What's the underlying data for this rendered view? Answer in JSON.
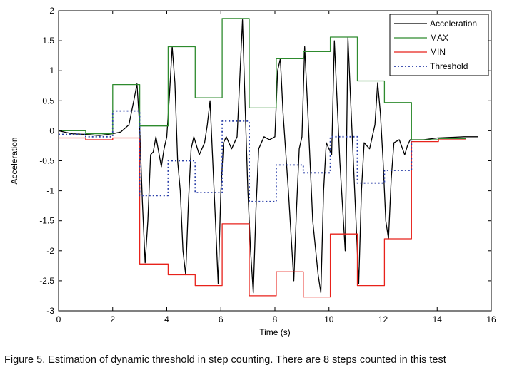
{
  "caption": "Figure 5. Estimation of dynamic threshold in step counting. There are 8 steps counted in this test",
  "chart_data": {
    "type": "line",
    "title": "",
    "xlabel": "Time (s)",
    "ylabel": "Acceleration",
    "xlim": [
      0,
      16
    ],
    "ylim": [
      -3,
      2
    ],
    "xticks": [
      0,
      2,
      4,
      6,
      8,
      10,
      12,
      14,
      16
    ],
    "yticks": [
      -3,
      -2.5,
      -2,
      -1.5,
      -1,
      -0.5,
      0,
      0.5,
      1,
      1.5,
      2
    ],
    "grid": false,
    "legend_position": "top-right",
    "series": [
      {
        "name": "Acceleration",
        "color": "#000000",
        "style": "solid",
        "points": [
          [
            0,
            0
          ],
          [
            0.5,
            -0.05
          ],
          [
            1,
            -0.06
          ],
          [
            1.5,
            -0.08
          ],
          [
            2,
            -0.05
          ],
          [
            2.3,
            -0.02
          ],
          [
            2.6,
            0.1
          ],
          [
            2.8,
            0.55
          ],
          [
            2.9,
            0.78
          ],
          [
            3.0,
            0.05
          ],
          [
            3.1,
            -1.2
          ],
          [
            3.2,
            -2.2
          ],
          [
            3.3,
            -1.5
          ],
          [
            3.4,
            -0.4
          ],
          [
            3.5,
            -0.35
          ],
          [
            3.6,
            -0.1
          ],
          [
            3.8,
            -0.6
          ],
          [
            3.9,
            -0.3
          ],
          [
            4.0,
            -0.1
          ],
          [
            4.1,
            0.6
          ],
          [
            4.2,
            1.4
          ],
          [
            4.3,
            0.8
          ],
          [
            4.4,
            -0.5
          ],
          [
            4.5,
            -1.0
          ],
          [
            4.6,
            -2.0
          ],
          [
            4.7,
            -2.4
          ],
          [
            4.8,
            -1.2
          ],
          [
            4.9,
            -0.3
          ],
          [
            5.0,
            -0.1
          ],
          [
            5.2,
            -0.4
          ],
          [
            5.4,
            -0.2
          ],
          [
            5.5,
            0.1
          ],
          [
            5.6,
            0.5
          ],
          [
            5.7,
            -0.5
          ],
          [
            5.8,
            -1.5
          ],
          [
            5.9,
            -2.55
          ],
          [
            6.0,
            -1.0
          ],
          [
            6.1,
            -0.2
          ],
          [
            6.2,
            -0.1
          ],
          [
            6.4,
            -0.3
          ],
          [
            6.6,
            -0.1
          ],
          [
            6.8,
            1.85
          ],
          [
            6.9,
            0.4
          ],
          [
            7.0,
            -1.0
          ],
          [
            7.1,
            -2.0
          ],
          [
            7.2,
            -2.7
          ],
          [
            7.3,
            -1.3
          ],
          [
            7.4,
            -0.3
          ],
          [
            7.6,
            -0.1
          ],
          [
            7.8,
            -0.15
          ],
          [
            8.0,
            -0.1
          ],
          [
            8.1,
            1.0
          ],
          [
            8.2,
            1.2
          ],
          [
            8.3,
            0.3
          ],
          [
            8.5,
            -1.0
          ],
          [
            8.7,
            -2.5
          ],
          [
            8.8,
            -1.3
          ],
          [
            8.9,
            -0.3
          ],
          [
            9.0,
            -0.1
          ],
          [
            9.1,
            1.4
          ],
          [
            9.2,
            0.5
          ],
          [
            9.4,
            -1.5
          ],
          [
            9.6,
            -2.4
          ],
          [
            9.7,
            -2.7
          ],
          [
            9.8,
            -1.0
          ],
          [
            9.9,
            -0.2
          ],
          [
            10.1,
            -0.4
          ],
          [
            10.2,
            1.5
          ],
          [
            10.4,
            -0.5
          ],
          [
            10.6,
            -2.0
          ],
          [
            10.7,
            1.55
          ],
          [
            10.8,
            0.5
          ],
          [
            11.0,
            -1.5
          ],
          [
            11.1,
            -2.55
          ],
          [
            11.2,
            -1.0
          ],
          [
            11.3,
            -0.2
          ],
          [
            11.5,
            -0.3
          ],
          [
            11.7,
            0.1
          ],
          [
            11.8,
            0.8
          ],
          [
            11.9,
            0.3
          ],
          [
            12.0,
            -0.5
          ],
          [
            12.1,
            -1.5
          ],
          [
            12.2,
            -1.8
          ],
          [
            12.3,
            -0.8
          ],
          [
            12.4,
            -0.2
          ],
          [
            12.6,
            -0.15
          ],
          [
            12.8,
            -0.4
          ],
          [
            12.9,
            -0.25
          ],
          [
            13.0,
            -0.15
          ],
          [
            13.5,
            -0.15
          ],
          [
            14.0,
            -0.12
          ],
          [
            14.5,
            -0.11
          ],
          [
            15.0,
            -0.1
          ],
          [
            15.5,
            -0.1
          ]
        ]
      },
      {
        "name": "MAX",
        "color": "#2e8b2e",
        "style": "solid",
        "points": [
          [
            0,
            0
          ],
          [
            1,
            0
          ],
          [
            1,
            -0.05
          ],
          [
            2,
            -0.05
          ],
          [
            2,
            0.77
          ],
          [
            3,
            0.77
          ],
          [
            3,
            0.08
          ],
          [
            4.05,
            0.08
          ],
          [
            4.05,
            1.4
          ],
          [
            5.05,
            1.4
          ],
          [
            5.05,
            0.55
          ],
          [
            6.05,
            0.55
          ],
          [
            6.05,
            1.87
          ],
          [
            7.05,
            1.87
          ],
          [
            7.05,
            0.38
          ],
          [
            8.05,
            0.38
          ],
          [
            8.05,
            1.2
          ],
          [
            9.05,
            1.2
          ],
          [
            9.05,
            1.32
          ],
          [
            10.05,
            1.32
          ],
          [
            10.05,
            1.56
          ],
          [
            11.05,
            1.56
          ],
          [
            11.05,
            0.83
          ],
          [
            12.05,
            0.83
          ],
          [
            12.05,
            0.47
          ],
          [
            13.05,
            0.47
          ],
          [
            13.05,
            -0.15
          ],
          [
            14.05,
            -0.15
          ],
          [
            14.05,
            -0.13
          ],
          [
            15.05,
            -0.13
          ]
        ]
      },
      {
        "name": "MIN",
        "color": "#e8221b",
        "style": "solid",
        "points": [
          [
            0,
            -0.12
          ],
          [
            1,
            -0.12
          ],
          [
            1,
            -0.15
          ],
          [
            2,
            -0.15
          ],
          [
            2,
            -0.12
          ],
          [
            3,
            -0.12
          ],
          [
            3,
            -2.22
          ],
          [
            4.05,
            -2.22
          ],
          [
            4.05,
            -2.4
          ],
          [
            5.05,
            -2.4
          ],
          [
            5.05,
            -2.58
          ],
          [
            6.05,
            -2.58
          ],
          [
            6.05,
            -1.55
          ],
          [
            7.05,
            -1.55
          ],
          [
            7.05,
            -2.75
          ],
          [
            8.05,
            -2.75
          ],
          [
            8.05,
            -2.35
          ],
          [
            9.05,
            -2.35
          ],
          [
            9.05,
            -2.77
          ],
          [
            10.05,
            -2.77
          ],
          [
            10.05,
            -1.72
          ],
          [
            11.05,
            -1.72
          ],
          [
            11.05,
            -2.58
          ],
          [
            12.05,
            -2.58
          ],
          [
            12.05,
            -1.8
          ],
          [
            13.05,
            -1.8
          ],
          [
            13.05,
            -0.18
          ],
          [
            14.05,
            -0.18
          ],
          [
            14.05,
            -0.15
          ],
          [
            15.05,
            -0.15
          ]
        ]
      },
      {
        "name": "Threshold",
        "color": "#2a3fa8",
        "style": "dotted",
        "points": [
          [
            0,
            -0.06
          ],
          [
            1,
            -0.06
          ],
          [
            1,
            -0.1
          ],
          [
            2,
            -0.1
          ],
          [
            2,
            0.33
          ],
          [
            3,
            0.33
          ],
          [
            3,
            -1.08
          ],
          [
            4.05,
            -1.08
          ],
          [
            4.05,
            -0.5
          ],
          [
            5.05,
            -0.5
          ],
          [
            5.05,
            -1.03
          ],
          [
            6.05,
            -1.03
          ],
          [
            6.05,
            0.16
          ],
          [
            7.05,
            0.16
          ],
          [
            7.05,
            -1.18
          ],
          [
            8.05,
            -1.18
          ],
          [
            8.05,
            -0.57
          ],
          [
            9.05,
            -0.57
          ],
          [
            9.05,
            -0.7
          ],
          [
            10.05,
            -0.7
          ],
          [
            10.05,
            -0.1
          ],
          [
            11.05,
            -0.1
          ],
          [
            11.05,
            -0.87
          ],
          [
            12.05,
            -0.87
          ],
          [
            12.05,
            -0.66
          ],
          [
            13.05,
            -0.66
          ],
          [
            13.05,
            -0.17
          ]
        ]
      }
    ]
  }
}
